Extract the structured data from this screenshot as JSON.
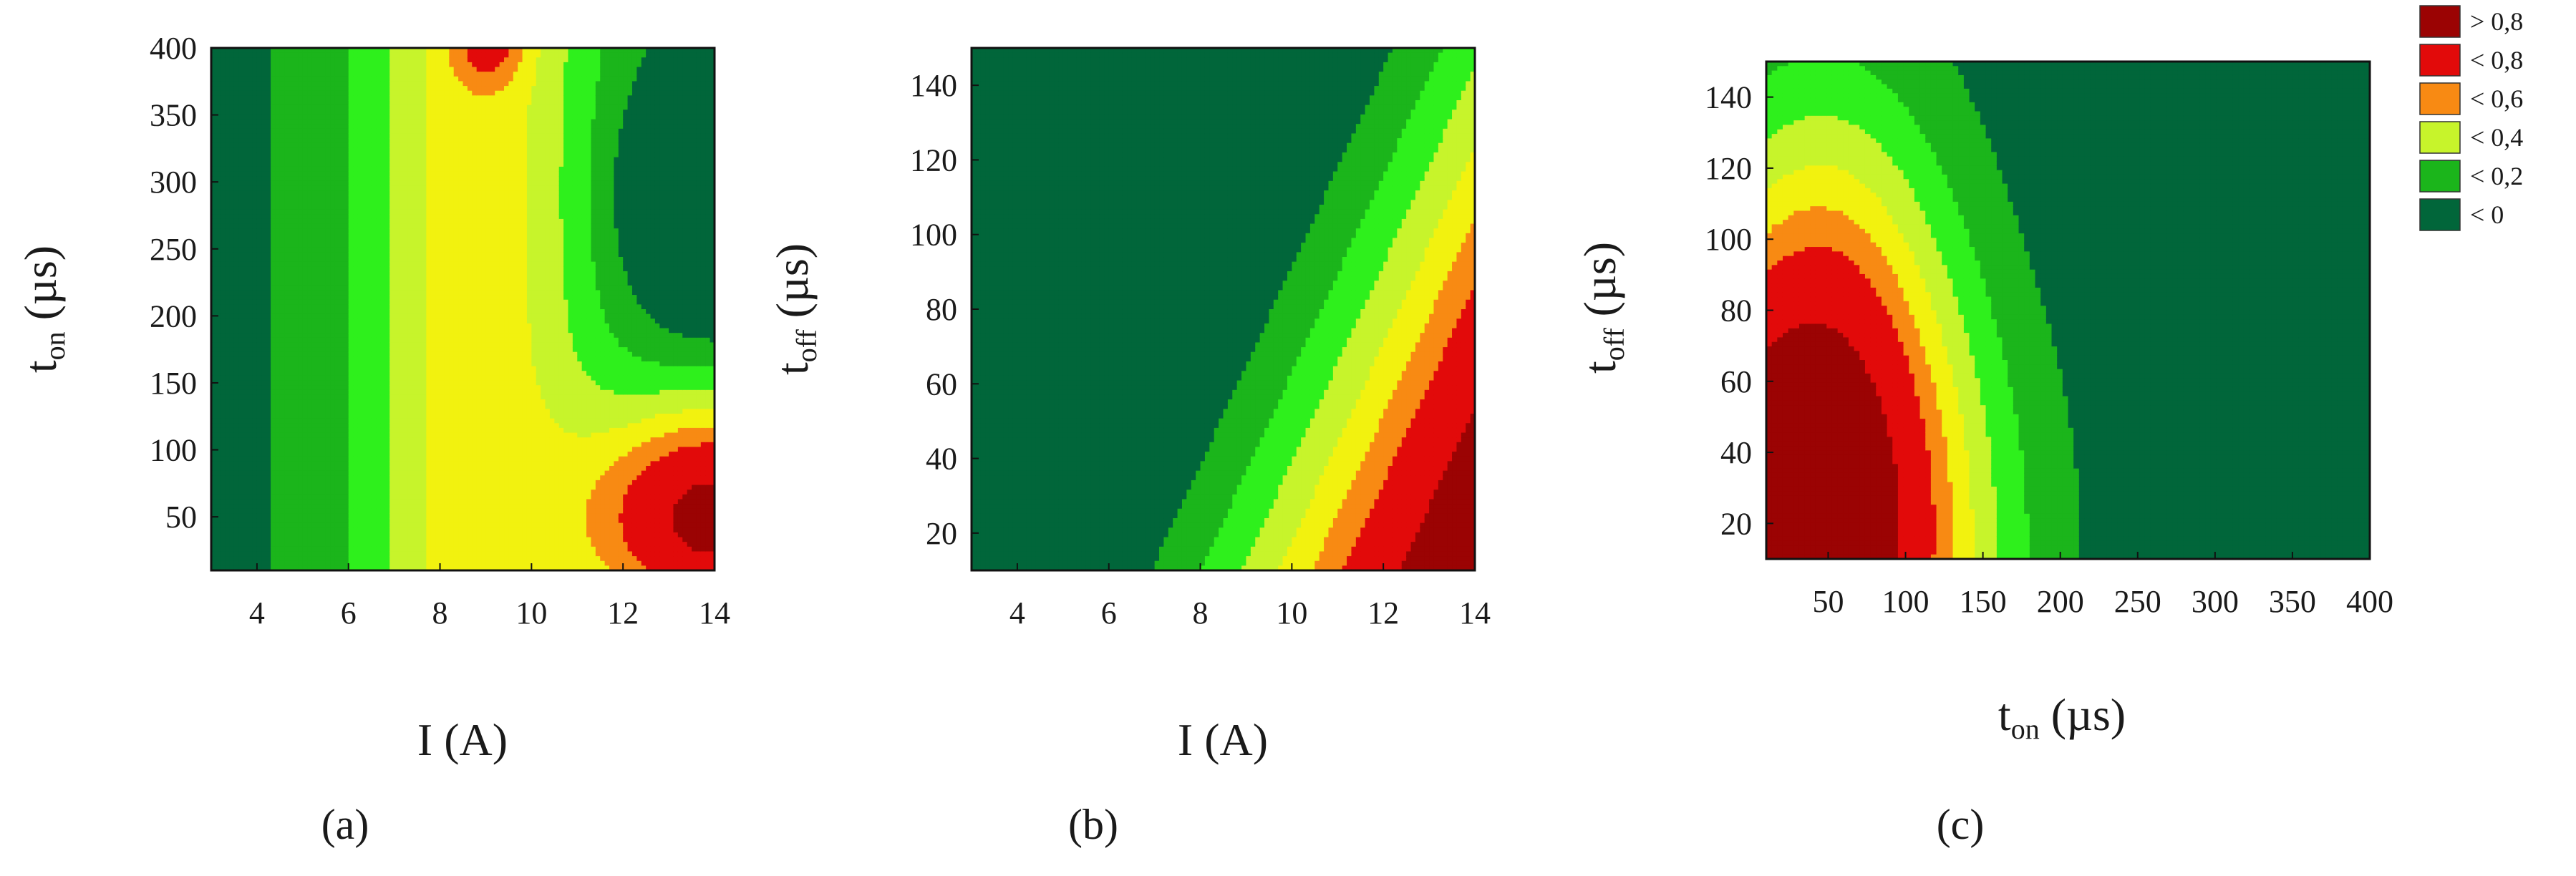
{
  "colors": {
    "c0": "#01663a",
    "c1": "#1bb51b",
    "c2": "#2ef01c",
    "c3": "#c7f42b",
    "c4": "#f2f20f",
    "c5": "#f88a13",
    "c6": "#e20a0a",
    "c7": "#9b0303"
  },
  "legend": [
    {
      "label": "> 0,8",
      "color": "#9b0303"
    },
    {
      "label": "< 0,8",
      "color": "#e20a0a"
    },
    {
      "label": "< 0,6",
      "color": "#f88a13"
    },
    {
      "label": "< 0,4",
      "color": "#c7f42b"
    },
    {
      "label": "< 0,2",
      "color": "#1bb51b"
    },
    {
      "label": "< 0",
      "color": "#01663a"
    }
  ],
  "chart_data": [
    {
      "type": "heatmap",
      "panel_label": "(a)",
      "xlabel": "I (A)",
      "ylabel_main": "t",
      "ylabel_sub": "on",
      "ylabel_unit": " (µs)",
      "xlim": [
        3,
        14
      ],
      "ylim": [
        10,
        400
      ],
      "xticks": [
        "4",
        "6",
        "8",
        "10",
        "12",
        "14"
      ],
      "yticks": [
        "50",
        "100",
        "150",
        "200",
        "250",
        "300",
        "350",
        "400"
      ],
      "contour_levels": [
        -0.1,
        0.1,
        0.2,
        0.3,
        0.4,
        0.5,
        0.6,
        0.8
      ],
      "peaks": [
        {
          "x": 14,
          "y": 40,
          "z": 0.9
        },
        {
          "x": 9,
          "y": 400,
          "z": 0.6
        }
      ]
    },
    {
      "type": "heatmap",
      "panel_label": "(b)",
      "xlabel": "I (A)",
      "ylabel_main": "t",
      "ylabel_sub": "off",
      "ylabel_unit": " (µs)",
      "xlim": [
        3,
        14
      ],
      "ylim": [
        10,
        150
      ],
      "xticks": [
        "4",
        "6",
        "8",
        "10",
        "12",
        "14"
      ],
      "yticks": [
        "20",
        "40",
        "60",
        "80",
        "100",
        "120",
        "140"
      ],
      "contour_levels": [
        -0.1,
        0.1,
        0.2,
        0.3,
        0.4,
        0.5,
        0.6,
        0.8
      ],
      "peaks": [
        {
          "x": 14,
          "y": 10,
          "z": 0.9
        }
      ]
    },
    {
      "type": "heatmap",
      "panel_label": "(c)",
      "xlabel_main": "t",
      "xlabel_sub": "on",
      "xlabel_unit": " (µs)",
      "ylabel_main": "t",
      "ylabel_sub": "off",
      "ylabel_unit": " (µs)",
      "xlim": [
        10,
        400
      ],
      "ylim": [
        10,
        150
      ],
      "xticks": [
        "50",
        "100",
        "150",
        "200",
        "250",
        "300",
        "350",
        "400"
      ],
      "yticks": [
        "20",
        "40",
        "60",
        "80",
        "100",
        "120",
        "140"
      ],
      "contour_levels": [
        -0.1,
        0.1,
        0.2,
        0.3,
        0.4,
        0.5,
        0.6,
        0.8
      ],
      "peaks": [
        {
          "x": 40,
          "y": 10,
          "z": 0.9
        },
        {
          "x": 340,
          "y": 110,
          "z": -0.3
        }
      ]
    }
  ]
}
